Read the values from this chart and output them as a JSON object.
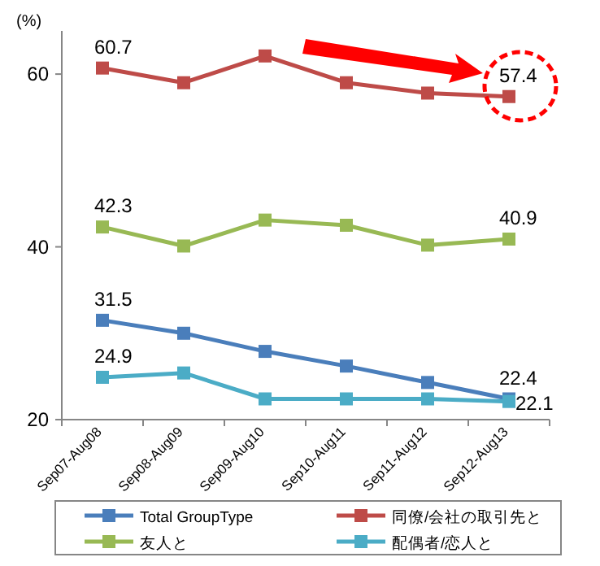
{
  "chart_data": {
    "type": "line",
    "ylabel": "(%)",
    "categories": [
      "Sep07-Aug08",
      "Sep08-Aug09",
      "Sep09-Aug10",
      "Sep10-Aug11",
      "Sep11-Aug12",
      "Sep12-Aug13"
    ],
    "series": [
      {
        "name": "Total GroupType",
        "color": "#4a7ebb",
        "values": [
          31.5,
          30.0,
          27.9,
          26.2,
          24.3,
          22.4
        ],
        "value_labels": [
          "31.5",
          null,
          null,
          null,
          null,
          "22.4"
        ]
      },
      {
        "name": "同僚/会社の取引先と",
        "color": "#be4b48",
        "values": [
          60.7,
          59.0,
          62.1,
          59.0,
          57.8,
          57.4
        ],
        "value_labels": [
          "60.7",
          null,
          null,
          null,
          null,
          "57.4"
        ]
      },
      {
        "name": "友人と",
        "color": "#98b954",
        "values": [
          42.3,
          40.1,
          43.1,
          42.5,
          40.2,
          40.9
        ],
        "value_labels": [
          "42.3",
          null,
          null,
          null,
          null,
          "40.9"
        ]
      },
      {
        "name": "配偶者/恋人と",
        "color": "#4bacc6",
        "values": [
          24.9,
          25.4,
          22.4,
          22.4,
          22.4,
          22.1
        ],
        "value_labels": [
          "24.9",
          null,
          null,
          null,
          null,
          "22.1"
        ]
      }
    ],
    "ylim": [
      20,
      65
    ],
    "yticks": [
      20,
      40,
      60
    ],
    "marker": "square",
    "line_style": "solid",
    "legend": "bottom",
    "grid": false
  }
}
